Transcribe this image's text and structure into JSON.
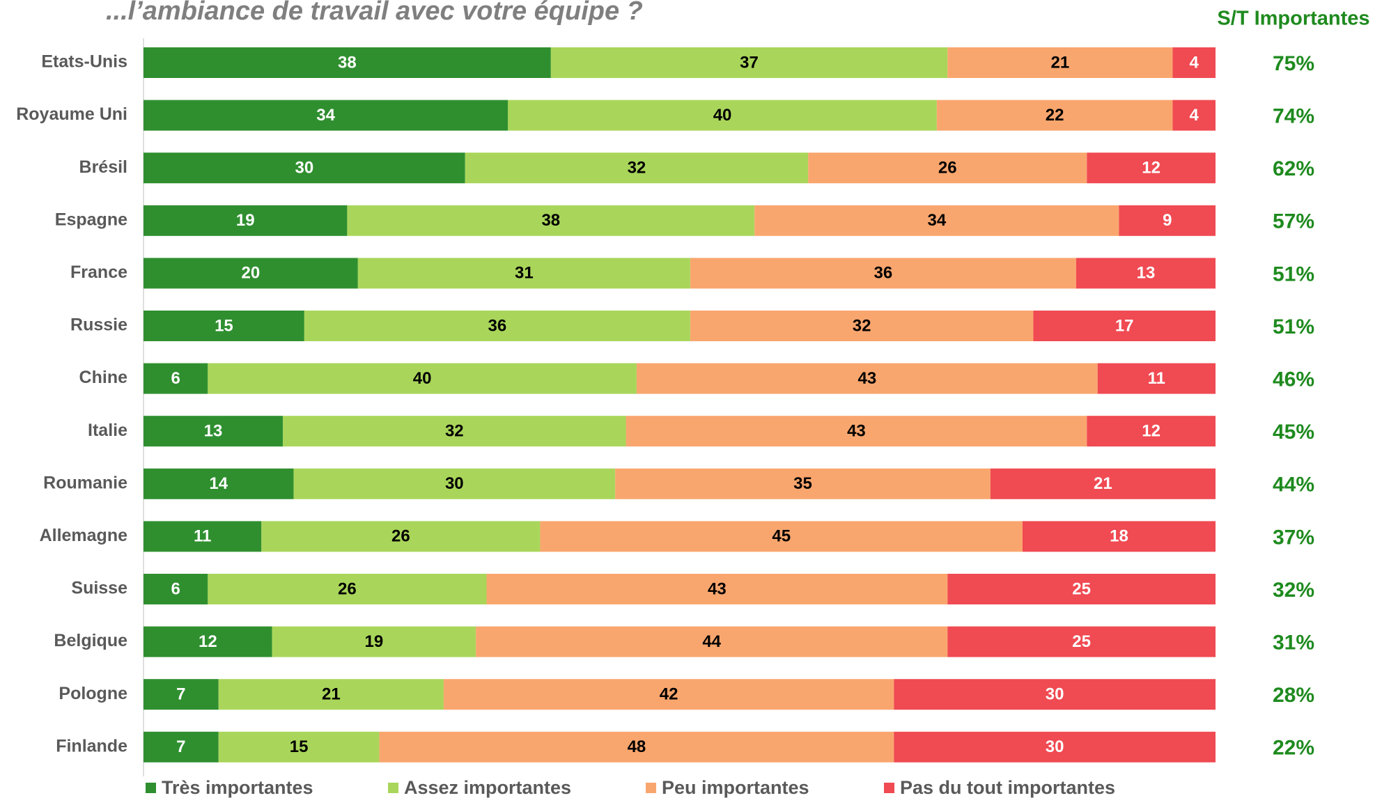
{
  "chart_data": {
    "type": "stacked_barh",
    "title": "...l’ambiance de travail avec votre équipe ?",
    "categories": [
      "Etats-Unis",
      "Royaume Uni",
      "Brésil",
      "Espagne",
      "France",
      "Russie",
      "Chine",
      "Italie",
      "Roumanie",
      "Allemagne",
      "Suisse",
      "Belgique",
      "Pologne",
      "Finlande"
    ],
    "series": [
      {
        "name": "Très importantes",
        "color": "#2f8f2f",
        "label_color": "#ffffff",
        "values": [
          38,
          34,
          30,
          19,
          20,
          15,
          6,
          13,
          14,
          11,
          6,
          12,
          7,
          7
        ]
      },
      {
        "name": "Assez importantes",
        "color": "#a9d65a",
        "label_color": "#000000",
        "values": [
          37,
          40,
          32,
          38,
          31,
          36,
          40,
          32,
          30,
          26,
          26,
          19,
          21,
          15
        ]
      },
      {
        "name": "Peu importantes",
        "color": "#f9a66e",
        "label_color": "#000000",
        "values": [
          21,
          22,
          26,
          34,
          36,
          32,
          43,
          43,
          35,
          45,
          43,
          44,
          42,
          48
        ]
      },
      {
        "name": "Pas du tout importantes",
        "color": "#f04a52",
        "label_color": "#ffffff",
        "values": [
          4,
          4,
          12,
          9,
          13,
          17,
          11,
          12,
          21,
          18,
          25,
          25,
          30,
          30
        ]
      }
    ],
    "xlim": [
      0,
      100
    ],
    "legend": "bottom",
    "subtotal": {
      "title": "S/T Importantes",
      "color": "#1e8a1e",
      "values": [
        75,
        74,
        62,
        57,
        51,
        51,
        46,
        45,
        44,
        37,
        32,
        31,
        28,
        22
      ],
      "value_labels": [
        "75%",
        "74%",
        "62%",
        "57%",
        "51%",
        "51%",
        "46%",
        "45%",
        "44%",
        "37%",
        "32%",
        "31%",
        "28%",
        "22%"
      ]
    }
  }
}
